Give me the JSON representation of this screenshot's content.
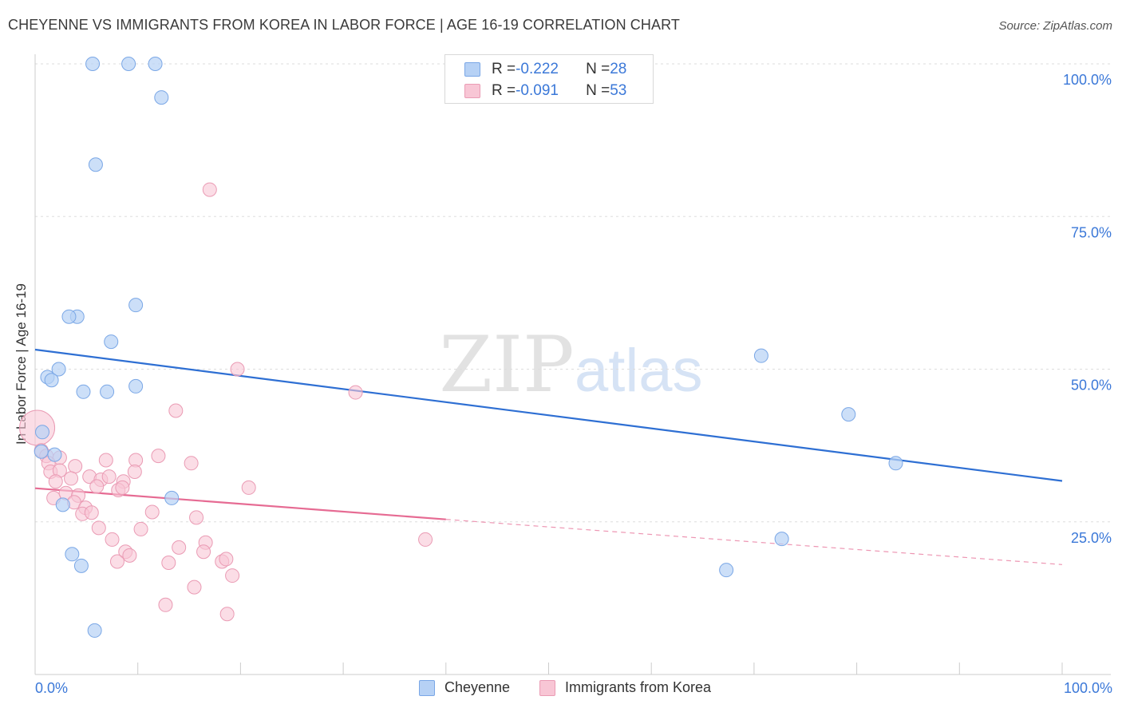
{
  "title": "CHEYENNE VS IMMIGRANTS FROM KOREA IN LABOR FORCE | AGE 16-19 CORRELATION CHART",
  "source": "Source: ZipAtlas.com",
  "watermark": {
    "zip": "ZIP",
    "atlas": "atlas"
  },
  "colors": {
    "cheyenne_fill": "#b6d1f5",
    "cheyenne_stroke": "#7aa7e6",
    "cheyenne_line": "#2e6fd3",
    "korea_fill": "#f8c6d5",
    "korea_stroke": "#ea9bb4",
    "korea_line": "#e66b93",
    "axis_text": "#3b78d8",
    "grid": "#dddddd"
  },
  "legend_top": {
    "rows": [
      {
        "r_label": "R = ",
        "r_value": "-0.222",
        "n_label": "N = ",
        "n_value": "28"
      },
      {
        "r_label": "R = ",
        "r_value": "-0.091",
        "n_label": "N = ",
        "n_value": "53"
      }
    ]
  },
  "legend_bottom": {
    "series1": "Cheyenne",
    "series2": "Immigrants from Korea"
  },
  "chart_data": {
    "type": "scatter",
    "title": "CHEYENNE VS IMMIGRANTS FROM KOREA IN LABOR FORCE | AGE 16-19 CORRELATION CHART",
    "xlabel": "",
    "ylabel": "In Labor Force | Age 16-19",
    "xlim": [
      0,
      100
    ],
    "ylim": [
      0,
      105
    ],
    "x_tick_labels": [
      "0.0%",
      "100.0%"
    ],
    "y_ticks": [
      25,
      50,
      75,
      100
    ],
    "y_tick_labels": [
      "25.0%",
      "50.0%",
      "75.0%",
      "100.0%"
    ],
    "grid": true,
    "series": [
      {
        "name": "Cheyenne",
        "R": -0.222,
        "N": 28,
        "points": [
          {
            "x": 5.6,
            "y": 100
          },
          {
            "x": 9.1,
            "y": 100
          },
          {
            "x": 11.7,
            "y": 100
          },
          {
            "x": 12.3,
            "y": 94.5
          },
          {
            "x": 5.9,
            "y": 83.5
          },
          {
            "x": 9.8,
            "y": 60.5
          },
          {
            "x": 4.1,
            "y": 58.6
          },
          {
            "x": 3.3,
            "y": 58.6
          },
          {
            "x": 7.4,
            "y": 54.5
          },
          {
            "x": 2.3,
            "y": 50.0
          },
          {
            "x": 1.2,
            "y": 48.7
          },
          {
            "x": 1.6,
            "y": 48.2
          },
          {
            "x": 4.7,
            "y": 46.3
          },
          {
            "x": 7.0,
            "y": 46.3
          },
          {
            "x": 9.8,
            "y": 47.2
          },
          {
            "x": 0.7,
            "y": 39.7
          },
          {
            "x": 0.6,
            "y": 36.5
          },
          {
            "x": 1.9,
            "y": 36.0
          },
          {
            "x": 2.7,
            "y": 27.8
          },
          {
            "x": 13.3,
            "y": 28.9
          },
          {
            "x": 3.6,
            "y": 19.7
          },
          {
            "x": 4.5,
            "y": 17.8
          },
          {
            "x": 5.8,
            "y": 7.2
          },
          {
            "x": 70.7,
            "y": 52.2
          },
          {
            "x": 79.2,
            "y": 42.6
          },
          {
            "x": 83.8,
            "y": 34.6
          },
          {
            "x": 72.7,
            "y": 22.2
          },
          {
            "x": 67.3,
            "y": 17.1
          }
        ],
        "trend": {
          "x1": 0,
          "y1": 53.2,
          "x2": 100,
          "y2": 31.7
        }
      },
      {
        "name": "Immigrants from Korea",
        "R": -0.091,
        "N": 53,
        "points": [
          {
            "x": 0.2,
            "y": 40.4,
            "size": "large"
          },
          {
            "x": 17.0,
            "y": 79.4
          },
          {
            "x": 19.7,
            "y": 50.0
          },
          {
            "x": 31.2,
            "y": 46.2
          },
          {
            "x": 13.7,
            "y": 43.2
          },
          {
            "x": 0.6,
            "y": 36.7
          },
          {
            "x": 1.1,
            "y": 35.8
          },
          {
            "x": 2.4,
            "y": 35.5
          },
          {
            "x": 1.3,
            "y": 34.6
          },
          {
            "x": 3.9,
            "y": 34.1
          },
          {
            "x": 6.9,
            "y": 35.1
          },
          {
            "x": 9.8,
            "y": 35.1
          },
          {
            "x": 12.0,
            "y": 35.8
          },
          {
            "x": 15.2,
            "y": 34.6
          },
          {
            "x": 1.5,
            "y": 33.2
          },
          {
            "x": 2.4,
            "y": 33.4
          },
          {
            "x": 9.7,
            "y": 33.2
          },
          {
            "x": 2.0,
            "y": 31.6
          },
          {
            "x": 3.5,
            "y": 32.1
          },
          {
            "x": 5.3,
            "y": 32.4
          },
          {
            "x": 6.4,
            "y": 31.9
          },
          {
            "x": 7.2,
            "y": 32.4
          },
          {
            "x": 8.6,
            "y": 31.6
          },
          {
            "x": 6.0,
            "y": 30.8
          },
          {
            "x": 8.1,
            "y": 30.2
          },
          {
            "x": 8.5,
            "y": 30.6
          },
          {
            "x": 20.8,
            "y": 30.6
          },
          {
            "x": 1.8,
            "y": 28.9
          },
          {
            "x": 3.0,
            "y": 29.7
          },
          {
            "x": 4.2,
            "y": 29.3
          },
          {
            "x": 3.8,
            "y": 28.2
          },
          {
            "x": 4.9,
            "y": 27.3
          },
          {
            "x": 4.6,
            "y": 26.3
          },
          {
            "x": 5.5,
            "y": 26.5
          },
          {
            "x": 11.4,
            "y": 26.6
          },
          {
            "x": 15.7,
            "y": 25.7
          },
          {
            "x": 6.2,
            "y": 24.0
          },
          {
            "x": 10.3,
            "y": 23.8
          },
          {
            "x": 7.5,
            "y": 22.1
          },
          {
            "x": 38.0,
            "y": 22.1
          },
          {
            "x": 16.6,
            "y": 21.6
          },
          {
            "x": 14.0,
            "y": 20.8
          },
          {
            "x": 8.8,
            "y": 20.1
          },
          {
            "x": 9.2,
            "y": 19.5
          },
          {
            "x": 16.4,
            "y": 20.1
          },
          {
            "x": 8.0,
            "y": 18.5
          },
          {
            "x": 13.0,
            "y": 18.3
          },
          {
            "x": 18.2,
            "y": 18.5
          },
          {
            "x": 18.6,
            "y": 18.9
          },
          {
            "x": 19.2,
            "y": 16.2
          },
          {
            "x": 15.5,
            "y": 14.3
          },
          {
            "x": 12.7,
            "y": 11.4
          },
          {
            "x": 18.7,
            "y": 9.9
          }
        ],
        "trend": {
          "x1": 0,
          "y1": 30.5,
          "x2": 40,
          "y2": 25.4
        },
        "trend_extension": {
          "x1": 40,
          "y1": 25.4,
          "x2": 100,
          "y2": 18.0
        }
      }
    ]
  }
}
